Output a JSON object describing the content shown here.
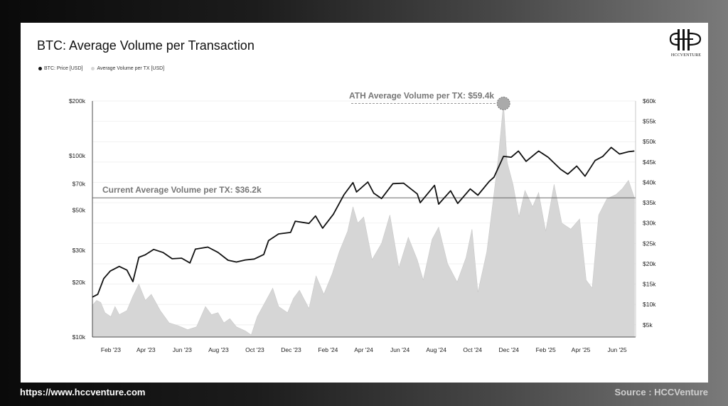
{
  "footer": {
    "website": "https://www.hccventure.com",
    "source": "Source : HCCVenture"
  },
  "logo": {
    "text": "HCCVENTURE"
  },
  "chart_data": {
    "type": "line",
    "title": "BTC: Average Volume per Transaction",
    "legend": [
      {
        "label": "BTC: Price [USD]",
        "color": "#111111"
      },
      {
        "label": "Average Volume per TX [USD]",
        "color": "#d6d6d6"
      }
    ],
    "legend_position": "top-left",
    "x_ticks": [
      "Feb '23",
      "Apr '23",
      "Jun '23",
      "Aug '23",
      "Oct '23",
      "Dec '23",
      "Feb '24",
      "Apr '24",
      "Jun '24",
      "Aug '24",
      "Oct '24",
      "Dec '24",
      "Feb '25",
      "Apr '25",
      "Jun '25"
    ],
    "y_left": {
      "scale": "log",
      "ticks": [
        {
          "value": 10000,
          "label": "$10k"
        },
        {
          "value": 20000,
          "label": "$20k"
        },
        {
          "value": 30000,
          "label": "$30k"
        },
        {
          "value": 50000,
          "label": "$50k"
        },
        {
          "value": 70000,
          "label": "$70k"
        },
        {
          "value": 100000,
          "label": "$100k"
        },
        {
          "value": 200000,
          "label": "$200k"
        }
      ],
      "range": [
        10000,
        200000
      ]
    },
    "y_right": {
      "scale": "linear",
      "ticks": [
        {
          "value": 5000,
          "label": "$5k"
        },
        {
          "value": 10000,
          "label": "$10k"
        },
        {
          "value": 15000,
          "label": "$15k"
        },
        {
          "value": 20000,
          "label": "$20k"
        },
        {
          "value": 25000,
          "label": "$25k"
        },
        {
          "value": 30000,
          "label": "$30k"
        },
        {
          "value": 35000,
          "label": "$35k"
        },
        {
          "value": 40000,
          "label": "$40k"
        },
        {
          "value": 45000,
          "label": "$45k"
        },
        {
          "value": 50000,
          "label": "$50k"
        },
        {
          "value": 55000,
          "label": "$55k"
        },
        {
          "value": 60000,
          "label": "$60k"
        }
      ],
      "range": [
        2000,
        60000
      ]
    },
    "grid": true,
    "annotations": {
      "current": {
        "label": "Current Average Volume per TX: $36.2k",
        "value": 36200
      },
      "ath": {
        "label": "ATH Average Volume per TX: $59.4k",
        "value": 59400,
        "date": "2024-11-22"
      }
    },
    "series": [
      {
        "name": "BTC: Price [USD]",
        "axis": "left",
        "points": [
          [
            "2023-01-01",
            16600
          ],
          [
            "2023-01-10",
            17200
          ],
          [
            "2023-01-20",
            21000
          ],
          [
            "2023-01-31",
            23100
          ],
          [
            "2023-02-15",
            24500
          ],
          [
            "2023-02-28",
            23400
          ],
          [
            "2023-03-10",
            20200
          ],
          [
            "2023-03-20",
            27500
          ],
          [
            "2023-03-31",
            28400
          ],
          [
            "2023-04-14",
            30400
          ],
          [
            "2023-04-30",
            29200
          ],
          [
            "2023-05-15",
            27000
          ],
          [
            "2023-05-31",
            27200
          ],
          [
            "2023-06-14",
            25600
          ],
          [
            "2023-06-23",
            30500
          ],
          [
            "2023-07-14",
            31300
          ],
          [
            "2023-07-31",
            29300
          ],
          [
            "2023-08-17",
            26500
          ],
          [
            "2023-08-31",
            25900
          ],
          [
            "2023-09-15",
            26600
          ],
          [
            "2023-09-30",
            26900
          ],
          [
            "2023-10-16",
            28500
          ],
          [
            "2023-10-24",
            34000
          ],
          [
            "2023-11-10",
            37000
          ],
          [
            "2023-11-30",
            37700
          ],
          [
            "2023-12-08",
            43500
          ],
          [
            "2023-12-31",
            42300
          ],
          [
            "2024-01-11",
            46500
          ],
          [
            "2024-01-23",
            39800
          ],
          [
            "2024-02-10",
            47500
          ],
          [
            "2024-02-28",
            61000
          ],
          [
            "2024-03-14",
            71000
          ],
          [
            "2024-03-20",
            63000
          ],
          [
            "2024-04-08",
            71500
          ],
          [
            "2024-04-18",
            62000
          ],
          [
            "2024-05-01",
            58000
          ],
          [
            "2024-05-20",
            70000
          ],
          [
            "2024-06-07",
            70500
          ],
          [
            "2024-06-30",
            61500
          ],
          [
            "2024-07-05",
            55000
          ],
          [
            "2024-07-29",
            68500
          ],
          [
            "2024-08-05",
            54000
          ],
          [
            "2024-08-25",
            64000
          ],
          [
            "2024-09-06",
            54500
          ],
          [
            "2024-09-27",
            65500
          ],
          [
            "2024-10-10",
            60500
          ],
          [
            "2024-10-29",
            72000
          ],
          [
            "2024-11-06",
            76000
          ],
          [
            "2024-11-22",
            99000
          ],
          [
            "2024-12-05",
            98000
          ],
          [
            "2024-12-17",
            106000
          ],
          [
            "2024-12-30",
            93000
          ],
          [
            "2025-01-20",
            106000
          ],
          [
            "2025-02-05",
            98000
          ],
          [
            "2025-02-26",
            84000
          ],
          [
            "2025-03-10",
            79000
          ],
          [
            "2025-03-25",
            87500
          ],
          [
            "2025-04-08",
            77000
          ],
          [
            "2025-04-25",
            94000
          ],
          [
            "2025-05-08",
            99000
          ],
          [
            "2025-05-22",
            111000
          ],
          [
            "2025-06-05",
            102000
          ],
          [
            "2025-06-20",
            105000
          ],
          [
            "2025-06-30",
            106000
          ]
        ]
      },
      {
        "name": "Average Volume per TX [USD]",
        "axis": "right",
        "points": [
          [
            "2023-01-01",
            9800
          ],
          [
            "2023-01-08",
            11000
          ],
          [
            "2023-01-15",
            10500
          ],
          [
            "2023-01-22",
            8000
          ],
          [
            "2023-02-01",
            7000
          ],
          [
            "2023-02-08",
            9500
          ],
          [
            "2023-02-15",
            7500
          ],
          [
            "2023-02-28",
            8500
          ],
          [
            "2023-03-10",
            12000
          ],
          [
            "2023-03-20",
            15000
          ],
          [
            "2023-03-31",
            11000
          ],
          [
            "2023-04-10",
            12500
          ],
          [
            "2023-04-25",
            8500
          ],
          [
            "2023-05-10",
            5500
          ],
          [
            "2023-05-25",
            4800
          ],
          [
            "2023-06-10",
            3800
          ],
          [
            "2023-06-25",
            4500
          ],
          [
            "2023-07-10",
            9500
          ],
          [
            "2023-07-20",
            7500
          ],
          [
            "2023-07-31",
            8000
          ],
          [
            "2023-08-10",
            5500
          ],
          [
            "2023-08-20",
            6500
          ],
          [
            "2023-08-31",
            4500
          ],
          [
            "2023-09-15",
            3500
          ],
          [
            "2023-09-25",
            2500
          ],
          [
            "2023-10-05",
            7000
          ],
          [
            "2023-10-20",
            11000
          ],
          [
            "2023-10-31",
            14000
          ],
          [
            "2023-11-10",
            9500
          ],
          [
            "2023-11-25",
            8000
          ],
          [
            "2023-12-05",
            11500
          ],
          [
            "2023-12-15",
            13500
          ],
          [
            "2023-12-31",
            9000
          ],
          [
            "2024-01-12",
            17000
          ],
          [
            "2024-01-25",
            12500
          ],
          [
            "2024-02-08",
            17500
          ],
          [
            "2024-02-20",
            23000
          ],
          [
            "2024-03-05",
            28000
          ],
          [
            "2024-03-14",
            34000
          ],
          [
            "2024-03-22",
            30000
          ],
          [
            "2024-04-01",
            31500
          ],
          [
            "2024-04-15",
            21000
          ],
          [
            "2024-05-01",
            25000
          ],
          [
            "2024-05-15",
            32000
          ],
          [
            "2024-05-30",
            19000
          ],
          [
            "2024-06-15",
            26500
          ],
          [
            "2024-06-30",
            21000
          ],
          [
            "2024-07-10",
            16000
          ],
          [
            "2024-07-25",
            26000
          ],
          [
            "2024-08-05",
            29000
          ],
          [
            "2024-08-20",
            20000
          ],
          [
            "2024-09-05",
            15500
          ],
          [
            "2024-09-20",
            21500
          ],
          [
            "2024-09-30",
            28500
          ],
          [
            "2024-10-10",
            13000
          ],
          [
            "2024-10-25",
            23000
          ],
          [
            "2024-11-05",
            36000
          ],
          [
            "2024-11-14",
            47000
          ],
          [
            "2024-11-22",
            59400
          ],
          [
            "2024-11-28",
            45000
          ],
          [
            "2024-12-08",
            39500
          ],
          [
            "2024-12-18",
            31500
          ],
          [
            "2024-12-28",
            38000
          ],
          [
            "2025-01-10",
            34000
          ],
          [
            "2025-01-20",
            37500
          ],
          [
            "2025-02-01",
            28000
          ],
          [
            "2025-02-15",
            39500
          ],
          [
            "2025-02-28",
            30000
          ],
          [
            "2025-03-15",
            28500
          ],
          [
            "2025-03-30",
            31000
          ],
          [
            "2025-04-10",
            16000
          ],
          [
            "2025-04-20",
            14000
          ],
          [
            "2025-05-01",
            32000
          ],
          [
            "2025-05-15",
            36000
          ],
          [
            "2025-05-30",
            37000
          ],
          [
            "2025-06-10",
            38500
          ],
          [
            "2025-06-20",
            40500
          ],
          [
            "2025-06-30",
            36200
          ]
        ]
      }
    ]
  }
}
